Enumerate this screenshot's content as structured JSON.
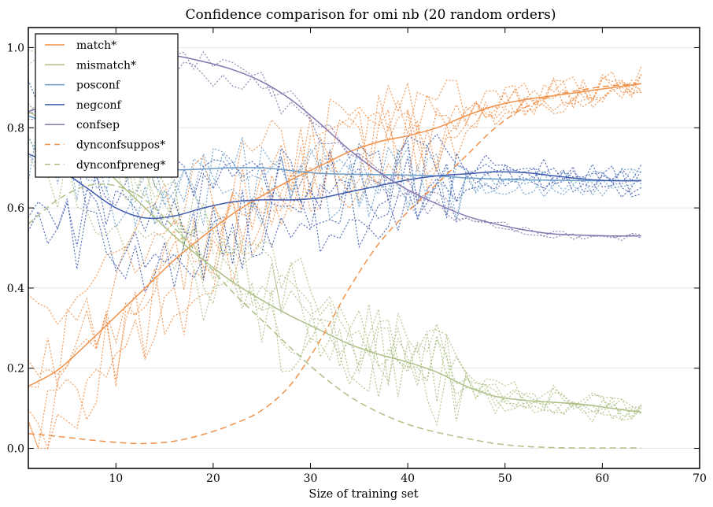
{
  "chart_data": {
    "type": "line",
    "title": "Confidence comparison for omi nb (20 random orders)",
    "xlabel": "Size of training set",
    "ylabel": "",
    "xlim": [
      1,
      70
    ],
    "ylim": [
      -0.05,
      1.05
    ],
    "xticks": [
      10,
      20,
      30,
      40,
      50,
      60,
      70
    ],
    "xtick_labels": [
      "10",
      "20",
      "30",
      "40",
      "50",
      "60",
      "70"
    ],
    "yticks": [
      0.0,
      0.2,
      0.4,
      0.6,
      0.8,
      1.0
    ],
    "ytick_labels": [
      "0.0",
      "0.2",
      "0.4",
      "0.6",
      "0.8",
      "1.0"
    ],
    "grid": "horizontal",
    "legend_position": "top-left",
    "x": [
      1,
      4,
      7,
      10,
      13,
      16,
      19,
      22,
      25,
      28,
      31,
      34,
      37,
      40,
      43,
      46,
      49,
      52,
      55,
      58,
      61,
      64
    ],
    "series": [
      {
        "name": "match*",
        "style": "solid",
        "color": "#f0914a",
        "values": [
          0.155,
          0.195,
          0.26,
          0.33,
          0.4,
          0.47,
          0.53,
          0.585,
          0.63,
          0.67,
          0.705,
          0.74,
          0.765,
          0.78,
          0.8,
          0.83,
          0.855,
          0.87,
          0.88,
          0.89,
          0.9,
          0.91
        ]
      },
      {
        "name": "mismatch*",
        "style": "solid",
        "color": "#adc086",
        "values": [
          0.84,
          0.8,
          0.74,
          0.67,
          0.6,
          0.53,
          0.47,
          0.415,
          0.37,
          0.33,
          0.295,
          0.26,
          0.235,
          0.215,
          0.19,
          0.155,
          0.13,
          0.12,
          0.115,
          0.11,
          0.1,
          0.09
        ]
      },
      {
        "name": "posconf",
        "style": "solid",
        "color": "#6a9bc9",
        "values": [
          0.83,
          0.8,
          0.76,
          0.72,
          0.7,
          0.695,
          0.697,
          0.7,
          0.7,
          0.693,
          0.686,
          0.684,
          0.683,
          0.682,
          0.68,
          0.675,
          0.672,
          0.67,
          0.669,
          0.668,
          0.668,
          0.668
        ]
      },
      {
        "name": "negconf",
        "style": "solid",
        "color": "#3f5bad",
        "values": [
          0.735,
          0.7,
          0.65,
          0.6,
          0.575,
          0.58,
          0.6,
          0.615,
          0.62,
          0.62,
          0.625,
          0.64,
          0.655,
          0.67,
          0.68,
          0.685,
          0.69,
          0.688,
          0.68,
          0.672,
          0.668,
          0.668
        ]
      },
      {
        "name": "confsep",
        "style": "solid",
        "color": "#8575ad",
        "values": [
          0.84,
          0.87,
          0.92,
          0.96,
          0.985,
          0.98,
          0.965,
          0.945,
          0.915,
          0.87,
          0.81,
          0.745,
          0.69,
          0.645,
          0.61,
          0.58,
          0.56,
          0.545,
          0.535,
          0.532,
          0.53,
          0.53
        ]
      },
      {
        "name": "dynconfsuppos*",
        "style": "dashed",
        "color": "#f0914a",
        "values": [
          0.037,
          0.03,
          0.022,
          0.015,
          0.012,
          0.018,
          0.035,
          0.06,
          0.095,
          0.16,
          0.27,
          0.4,
          0.51,
          0.59,
          0.66,
          0.73,
          0.8,
          0.85,
          0.88,
          0.895,
          0.905,
          0.91
        ]
      },
      {
        "name": "dynconfpreneg*",
        "style": "dashed",
        "color": "#adc086",
        "values": [
          0.56,
          0.62,
          0.655,
          0.655,
          0.62,
          0.55,
          0.47,
          0.39,
          0.32,
          0.25,
          0.185,
          0.13,
          0.09,
          0.06,
          0.04,
          0.025,
          0.012,
          0.005,
          0.002,
          0.001,
          0.001,
          0.001
        ]
      }
    ],
    "individual_runs_note": "dotted thin lines show individual random orders for several metrics"
  }
}
